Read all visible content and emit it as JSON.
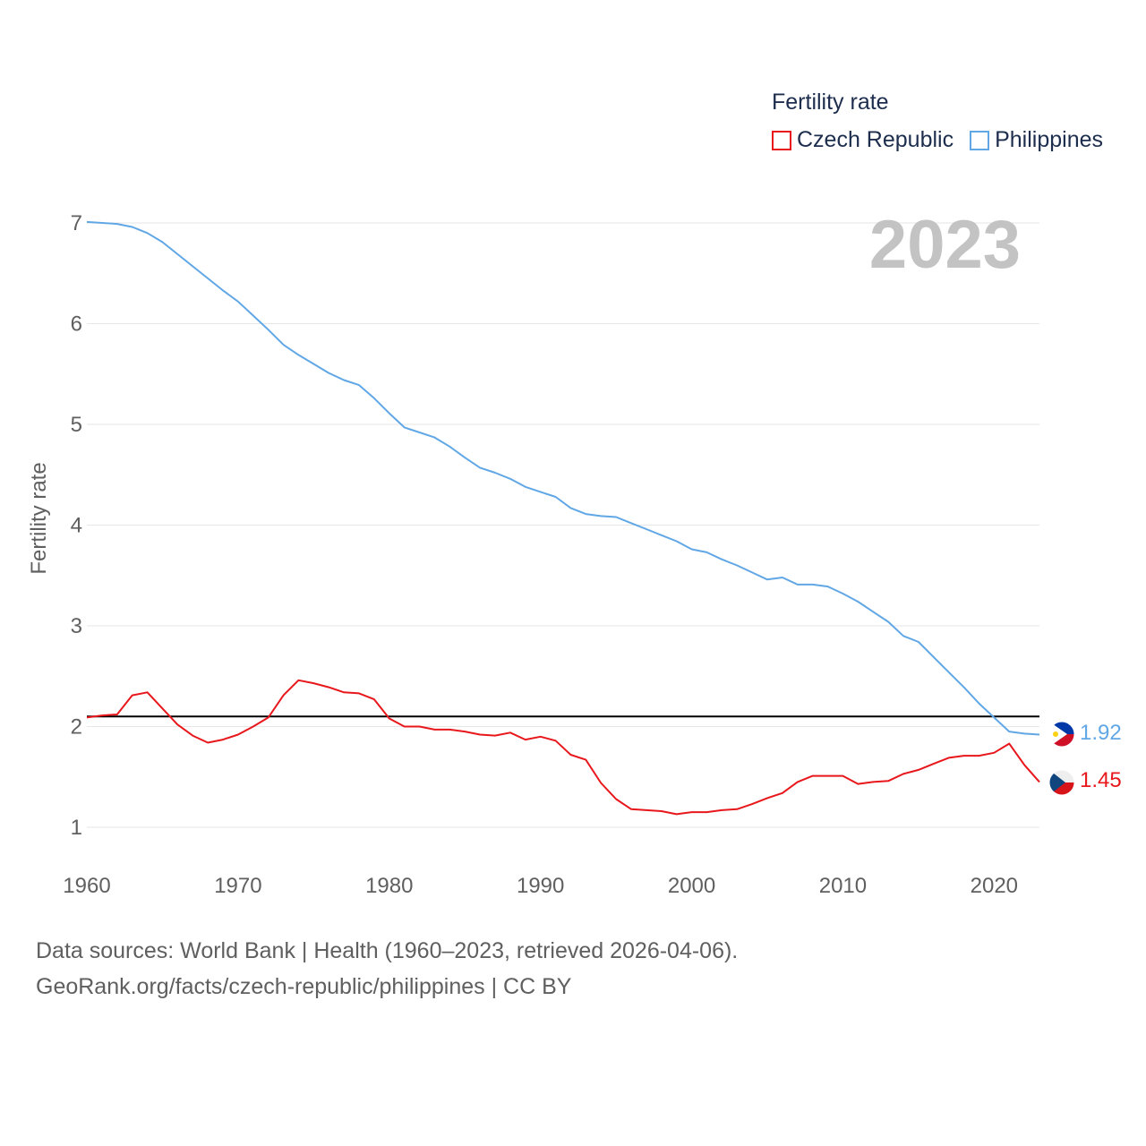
{
  "legend": {
    "title": "Fertility rate",
    "items": [
      {
        "name": "Czech Republic",
        "color": "#e8171b"
      },
      {
        "name": "Philippines",
        "color": "#61a7e6"
      }
    ]
  },
  "year_label": "2023",
  "footer": {
    "line1": "Data sources: World Bank | Health (1960–2023, retrieved 2026-04-06).",
    "line2": "GeoRank.org/facts/czech-republic/philippines | CC BY"
  },
  "flags": [
    {
      "country": "Philippines",
      "icon": "philippines-flag-icon"
    },
    {
      "country": "Czech Republic",
      "icon": "czech-flag-icon"
    }
  ],
  "chart_data": {
    "type": "line",
    "title": "Fertility rate",
    "xlabel": "",
    "ylabel": "Fertility rate",
    "xlim": [
      1960,
      2023
    ],
    "ylim": [
      0.6,
      7.2
    ],
    "x_ticks": [
      1960,
      1970,
      1980,
      1990,
      2000,
      2010,
      2020
    ],
    "y_ticks": [
      1,
      2,
      3,
      4,
      5,
      6,
      7
    ],
    "grid": true,
    "reference_line": {
      "value": 2.1,
      "color": "#000000"
    },
    "x": [
      1960,
      1961,
      1962,
      1963,
      1964,
      1965,
      1966,
      1967,
      1968,
      1969,
      1970,
      1971,
      1972,
      1973,
      1974,
      1975,
      1976,
      1977,
      1978,
      1979,
      1980,
      1981,
      1982,
      1983,
      1984,
      1985,
      1986,
      1987,
      1988,
      1989,
      1990,
      1991,
      1992,
      1993,
      1994,
      1995,
      1996,
      1997,
      1998,
      1999,
      2000,
      2001,
      2002,
      2003,
      2004,
      2005,
      2006,
      2007,
      2008,
      2009,
      2010,
      2011,
      2012,
      2013,
      2014,
      2015,
      2016,
      2017,
      2018,
      2019,
      2020,
      2021,
      2022,
      2023
    ],
    "series": [
      {
        "name": "Czech Republic",
        "color": "#e8171b",
        "end_label": "1.45",
        "values": [
          2.09,
          2.11,
          2.12,
          2.31,
          2.34,
          2.18,
          2.02,
          1.91,
          1.84,
          1.87,
          1.92,
          2.0,
          2.09,
          2.31,
          2.46,
          2.43,
          2.39,
          2.34,
          2.33,
          2.27,
          2.08,
          2.0,
          2.0,
          1.97,
          1.97,
          1.95,
          1.92,
          1.91,
          1.94,
          1.87,
          1.9,
          1.86,
          1.72,
          1.67,
          1.44,
          1.28,
          1.18,
          1.17,
          1.16,
          1.13,
          1.15,
          1.15,
          1.17,
          1.18,
          1.23,
          1.29,
          1.34,
          1.45,
          1.51,
          1.51,
          1.51,
          1.43,
          1.45,
          1.46,
          1.53,
          1.57,
          1.63,
          1.69,
          1.71,
          1.71,
          1.74,
          1.83,
          1.62,
          1.45
        ]
      },
      {
        "name": "Philippines",
        "color": "#61a7e6",
        "end_label": "1.92",
        "values": [
          7.01,
          7.0,
          6.99,
          6.96,
          6.9,
          6.81,
          6.69,
          6.57,
          6.45,
          6.33,
          6.22,
          6.08,
          5.94,
          5.79,
          5.69,
          5.6,
          5.51,
          5.44,
          5.39,
          5.26,
          5.11,
          4.97,
          4.92,
          4.87,
          4.78,
          4.67,
          4.57,
          4.52,
          4.46,
          4.38,
          4.33,
          4.28,
          4.17,
          4.11,
          4.09,
          4.08,
          4.02,
          3.96,
          3.9,
          3.84,
          3.76,
          3.73,
          3.66,
          3.6,
          3.53,
          3.46,
          3.48,
          3.41,
          3.41,
          3.39,
          3.32,
          3.24,
          3.14,
          3.04,
          2.9,
          2.84,
          2.69,
          2.54,
          2.39,
          2.23,
          2.09,
          1.95,
          1.93,
          1.92
        ]
      }
    ]
  }
}
